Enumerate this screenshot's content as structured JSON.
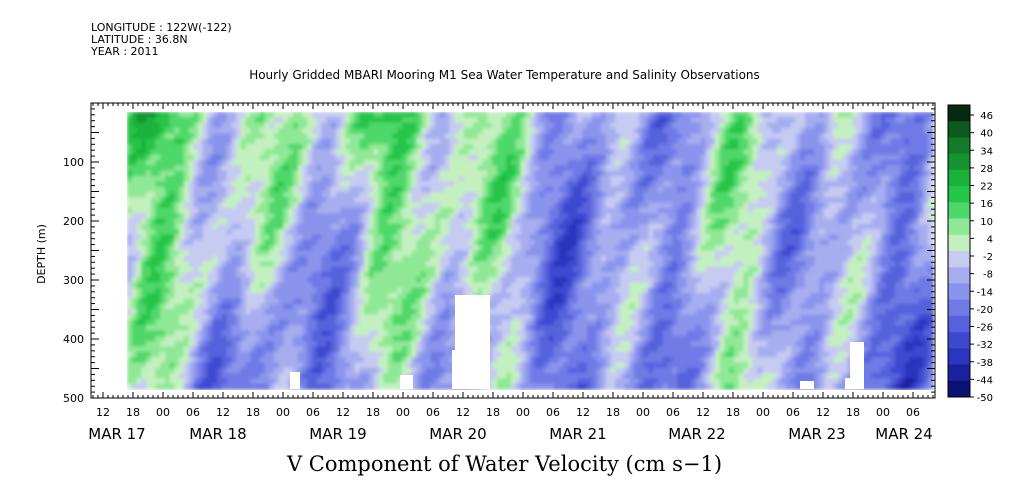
{
  "header": {
    "longitude": "LONGITUDE : 122W(-122)",
    "latitude": "LATITUDE : 36.8N",
    "year": "YEAR : 2011"
  },
  "chart_data": {
    "type": "heatmap",
    "title": "Hourly Gridded MBARI Mooring M1 Sea Water Temperature and Salinity Observations",
    "xlabel": "V Component of Water Velocity (cm s−1)",
    "ylabel": "DEPTH (m)",
    "y_reversed": true,
    "ylim": [
      500,
      0
    ],
    "y_ticks": [
      100,
      200,
      300,
      400,
      500
    ],
    "x_hour_ticks": [
      "12",
      "18",
      "00",
      "06",
      "12",
      "18",
      "00",
      "06",
      "12",
      "18",
      "00",
      "06",
      "12",
      "18",
      "00",
      "06",
      "12",
      "18",
      "00",
      "06",
      "12",
      "18",
      "00",
      "06",
      "12",
      "18",
      "00",
      "06",
      "12",
      "18",
      "00",
      "06",
      "12",
      "18",
      "00",
      "06"
    ],
    "x_date_labels": [
      "MAR 17",
      "MAR 18",
      "MAR 19",
      "MAR 20",
      "MAR 21",
      "MAR 22",
      "MAR 23",
      "MAR 24"
    ],
    "colorbar": {
      "labels": [
        "46",
        "40",
        "34",
        "28",
        "22",
        "16",
        "10",
        "4",
        "-2",
        "-8",
        "-14",
        "-20",
        "-26",
        "-32",
        "-38",
        "-44",
        "-50"
      ],
      "range": [
        -50,
        50
      ],
      "colors": [
        "#062a0f",
        "#0d5a1e",
        "#127a28",
        "#169432",
        "#1bb23c",
        "#25c548",
        "#4fd86a",
        "#8fe895",
        "#c4f0c0",
        "#c6cbf2",
        "#a6aef0",
        "#8a94ec",
        "#6f7ae6",
        "#5662dc",
        "#3d4ad0",
        "#2a36bd",
        "#1b22a0",
        "#0c1275"
      ]
    },
    "note_missing": "white gaps = no data"
  }
}
